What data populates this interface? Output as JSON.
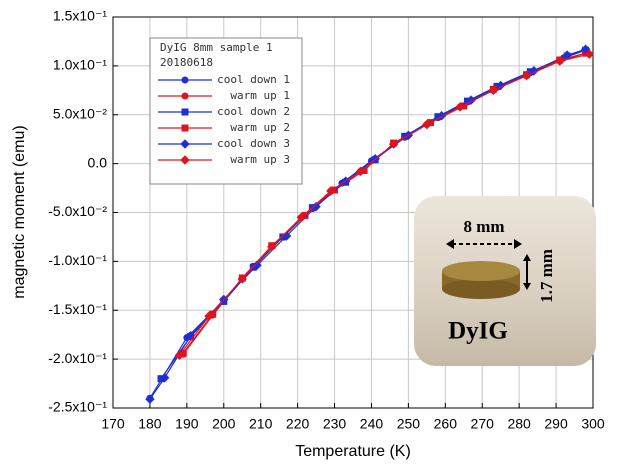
{
  "chart_data": {
    "type": "line",
    "xlabel": "Temperature (K)",
    "ylabel": "magnetic moment (emu)",
    "xlim": [
      170,
      300
    ],
    "xticks": [
      170,
      180,
      190,
      200,
      210,
      220,
      230,
      240,
      250,
      260,
      270,
      280,
      290,
      300
    ],
    "ylim": [
      -0.25,
      0.15
    ],
    "yticks": [
      {
        "value": -0.25,
        "label": "-2.5x10⁻¹"
      },
      {
        "value": -0.2,
        "label": "-2.0x10⁻¹"
      },
      {
        "value": -0.15,
        "label": "-1.5x10⁻¹"
      },
      {
        "value": -0.1,
        "label": "-1.0x10⁻¹"
      },
      {
        "value": -0.05,
        "label": "-5.0x10⁻²"
      },
      {
        "value": 0,
        "label": "0.0"
      },
      {
        "value": 0.05,
        "label": "5.0x10⁻²"
      },
      {
        "value": 0.1,
        "label": "1.0x10⁻¹"
      },
      {
        "value": 0.15,
        "label": "1.5x10⁻¹"
      }
    ],
    "grid": true,
    "legend_title": [
      "DyIG 8mm sample 1",
      "20180618"
    ],
    "series": [
      {
        "name": "cool down 1",
        "color": "#1f2fd6",
        "marker": "circle",
        "x": [
          180,
          190,
          200,
          208,
          216,
          224,
          232,
          240,
          249,
          258,
          266,
          274,
          283,
          292,
          298
        ],
        "values": [
          -0.24,
          -0.178,
          -0.14,
          -0.105,
          -0.075,
          -0.046,
          -0.02,
          0.003,
          0.027,
          0.047,
          0.063,
          0.078,
          0.093,
          0.108,
          0.116
        ]
      },
      {
        "name": "warm up 1",
        "color": "#e0141c",
        "marker": "circle",
        "x": [
          189,
          197,
          205,
          213,
          221,
          229,
          237,
          246,
          255,
          264,
          273,
          282,
          291,
          298
        ],
        "values": [
          -0.195,
          -0.155,
          -0.118,
          -0.085,
          -0.055,
          -0.028,
          -0.008,
          0.02,
          0.04,
          0.058,
          0.075,
          0.09,
          0.105,
          0.113
        ]
      },
      {
        "name": "cool down 2",
        "color": "#1f2fd6",
        "marker": "square",
        "x": [
          183,
          191,
          200,
          208,
          216,
          224,
          233,
          241,
          249,
          258,
          266,
          274,
          283,
          293,
          298
        ],
        "values": [
          -0.22,
          -0.177,
          -0.141,
          -0.106,
          -0.075,
          -0.045,
          -0.019,
          0.004,
          0.028,
          0.048,
          0.064,
          0.079,
          0.094,
          0.11,
          0.116
        ]
      },
      {
        "name": "warm up 2",
        "color": "#e0141c",
        "marker": "square",
        "x": [
          189,
          197,
          205,
          213,
          222,
          230,
          238,
          246,
          256,
          265,
          273,
          282,
          291,
          298
        ],
        "values": [
          -0.194,
          -0.154,
          -0.117,
          -0.084,
          -0.053,
          -0.027,
          -0.007,
          0.021,
          0.042,
          0.059,
          0.076,
          0.091,
          0.106,
          0.113
        ]
      },
      {
        "name": "cool down 3",
        "color": "#1f2fd6",
        "marker": "diamond",
        "x": [
          180,
          184,
          191,
          200,
          209,
          217,
          225,
          233,
          241,
          250,
          259,
          267,
          275,
          284,
          293,
          298
        ],
        "values": [
          -0.241,
          -0.219,
          -0.176,
          -0.139,
          -0.104,
          -0.074,
          -0.044,
          -0.018,
          0.005,
          0.029,
          0.049,
          0.065,
          0.08,
          0.095,
          0.111,
          0.117
        ]
      },
      {
        "name": "warm up 3",
        "color": "#e0141c",
        "marker": "diamond",
        "x": [
          188,
          196,
          205,
          213,
          221,
          229,
          237,
          246,
          255,
          264,
          273,
          282,
          291,
          299
        ],
        "values": [
          -0.196,
          -0.156,
          -0.118,
          -0.085,
          -0.055,
          -0.028,
          -0.008,
          0.02,
          0.04,
          0.058,
          0.075,
          0.09,
          0.105,
          0.112
        ]
      }
    ],
    "inset": {
      "width_label": "8 mm",
      "height_label": "1.7 mm",
      "caption": "DyIG"
    }
  }
}
